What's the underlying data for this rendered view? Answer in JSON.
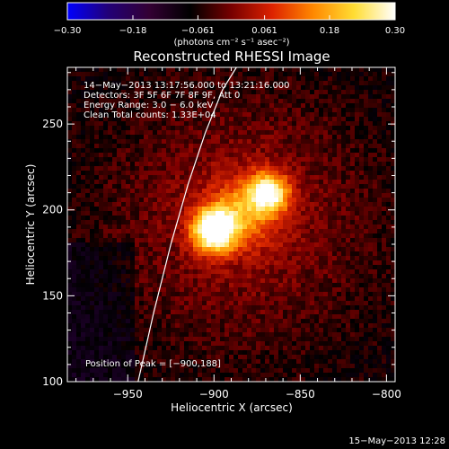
{
  "chart_data": {
    "type": "heatmap",
    "title": "Reconstructed RHESSI Image",
    "xlabel": "Heliocentric X (arcsec)",
    "ylabel": "Heliocentric Y (arcsec)",
    "xlim": [
      -985,
      -795
    ],
    "ylim": [
      100,
      283
    ],
    "x_ticks": [
      -950,
      -900,
      -850,
      -800
    ],
    "x_tick_labels": [
      "−950",
      "−900",
      "−850",
      "−800"
    ],
    "y_ticks": [
      100,
      150,
      200,
      250
    ],
    "y_tick_labels": [
      "100",
      "150",
      "200",
      "250"
    ],
    "colorbar": {
      "range": [
        -0.3,
        0.3
      ],
      "ticks": [
        -0.3,
        -0.18,
        -0.061,
        0.061,
        0.18,
        0.3
      ],
      "tick_labels": [
        "−0.30",
        "−0.18",
        "−0.061",
        "0.061",
        "0.18",
        "0.30"
      ],
      "unit_label": "(photons cm⁻² s⁻¹ asec⁻²)",
      "colors": [
        "#0000ff",
        "#220077",
        "#330033",
        "#000000",
        "#770000",
        "#dd2200",
        "#ff8800",
        "#ffdd33",
        "#ffffff"
      ]
    },
    "sources": [
      {
        "x": -900,
        "y": 188,
        "sigma": 9,
        "peak": 0.3
      },
      {
        "x": -868,
        "y": 210,
        "sigma": 8,
        "peak": 0.22
      },
      {
        "x": -882,
        "y": 200,
        "sigma": 14,
        "peak": 0.12
      }
    ],
    "limb_curve": [
      [
        -944,
        100
      ],
      [
        -935,
        140
      ],
      [
        -925,
        180
      ],
      [
        -915,
        215
      ],
      [
        -905,
        245
      ],
      [
        -895,
        270
      ],
      [
        -887,
        283
      ]
    ],
    "peak_position": [
      -900,
      188
    ]
  },
  "annotations": {
    "time_range": "14−May−2013 13:17:56.000 to 13:21:16.000",
    "detectors": "Detectors: 3F 5F 6F 7F 8F 9F, Att 0",
    "energy": "Energy Range: 3.0 − 6.0 keV",
    "method": "Clean    Total counts: 1.33E+04",
    "peak": "Position of Peak = [−900,188]"
  },
  "footer": {
    "timestamp": "15−May−2013 12:28"
  }
}
